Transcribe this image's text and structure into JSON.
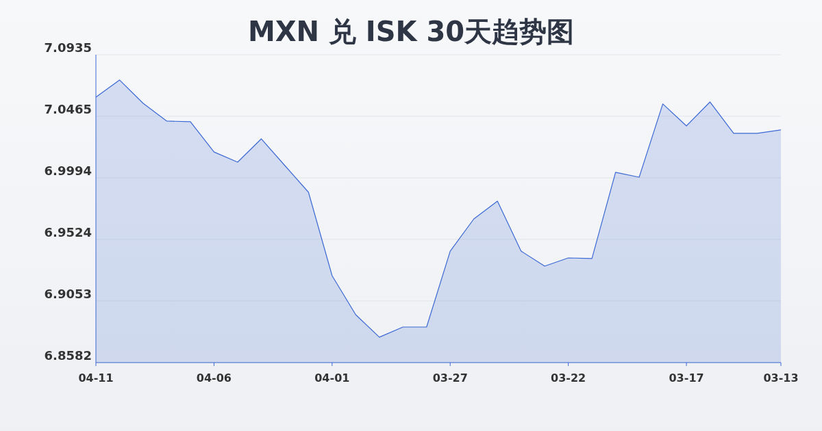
{
  "chart_data": {
    "type": "area",
    "title": "MXN 兑 ISK 30天趋势图",
    "categories": [
      "04-11",
      null,
      null,
      null,
      null,
      "04-06",
      null,
      null,
      null,
      null,
      "04-01",
      null,
      null,
      null,
      null,
      "03-27",
      null,
      null,
      null,
      null,
      "03-22",
      null,
      null,
      null,
      null,
      "03-17",
      null,
      null,
      null,
      "03-13"
    ],
    "series": [
      {
        "color": "#3b68d4",
        "values": [
          7.0611,
          7.0742,
          7.0564,
          7.0428,
          7.0423,
          7.0192,
          7.0114,
          7.0292,
          7.0088,
          6.9884,
          6.9246,
          6.8948,
          6.8776,
          6.8854,
          6.8854,
          6.9434,
          6.968,
          6.9816,
          6.9434,
          6.9319,
          6.9382,
          6.9377,
          7.0036,
          6.9999,
          7.0559,
          7.0391,
          7.0574,
          7.0334,
          7.0334,
          7.036
        ]
      }
    ],
    "ylim": [
      6.8582,
      7.0935
    ],
    "yticks": [
      6.8582,
      6.9053,
      6.9524,
      6.9994,
      7.0465,
      7.0935
    ],
    "grid": "y"
  }
}
